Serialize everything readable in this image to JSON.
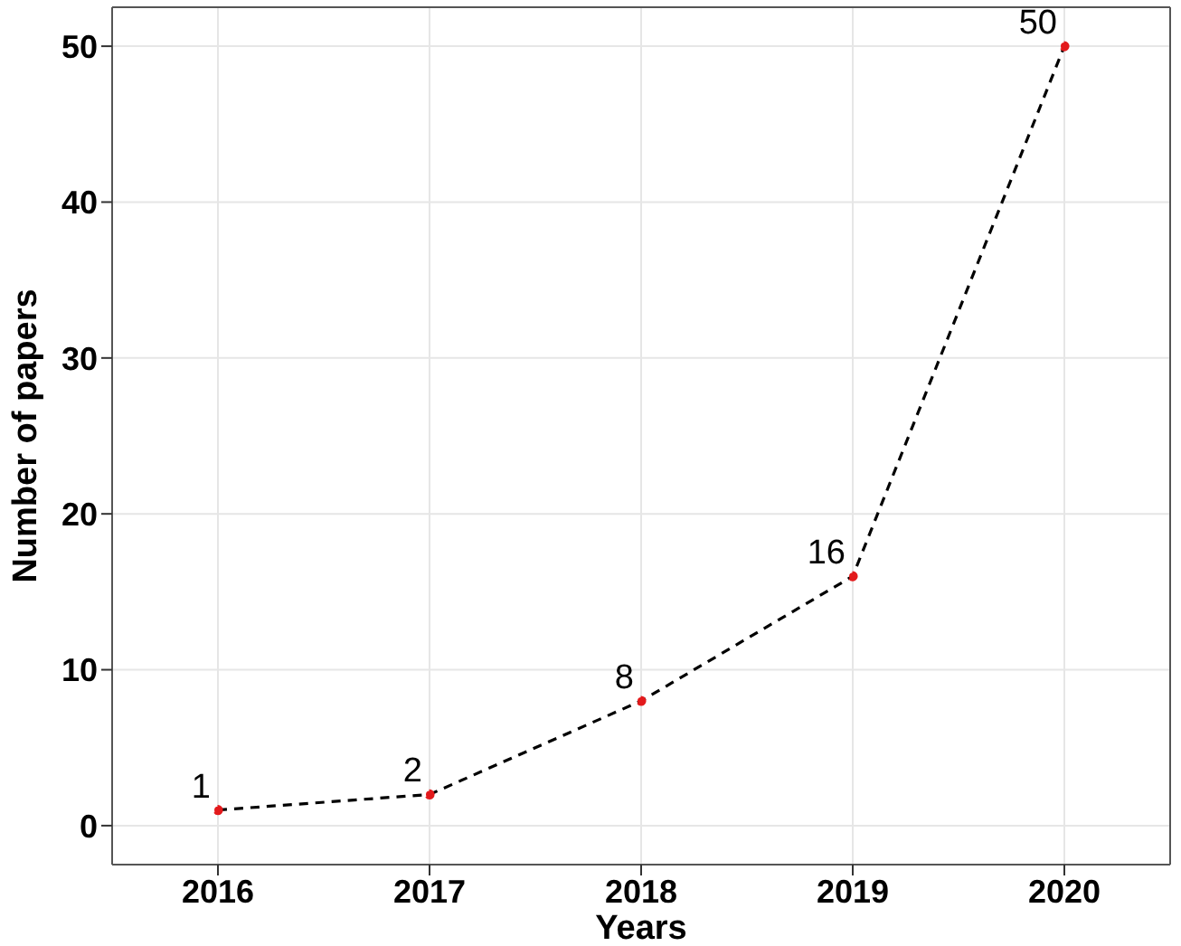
{
  "chart_data": {
    "type": "line",
    "xlabel": "Years",
    "ylabel": "Number of papers",
    "x": [
      2016,
      2017,
      2018,
      2019,
      2020
    ],
    "series": [
      {
        "color": "#000000",
        "values": [
          1,
          2,
          8,
          16,
          50
        ]
      }
    ],
    "xlim": [
      2015.5,
      2020.5
    ],
    "xticks": [
      2016,
      2017,
      2018,
      2019,
      2020
    ],
    "ylim": [
      -2.5,
      52.5
    ],
    "yticks": [
      0,
      10,
      20,
      30,
      40,
      50
    ],
    "grid": true,
    "marker": "circle",
    "line_style": "dashed",
    "data_labels": true
  }
}
